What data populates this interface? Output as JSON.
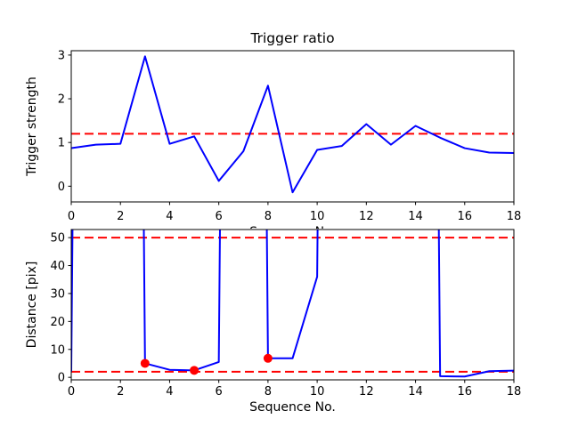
{
  "figure": {
    "background": "#ffffff",
    "text_color": "#000000"
  },
  "chart_data": [
    {
      "id": "trigger-ratio",
      "type": "line",
      "title": "Trigger ratio",
      "xlabel": "Sequence No.",
      "ylabel": "Trigger strength",
      "x": [
        0,
        1,
        2,
        3,
        4,
        5,
        6,
        7,
        8,
        9,
        10,
        11,
        12,
        13,
        14,
        15,
        16,
        17,
        18
      ],
      "y": [
        0.87,
        0.95,
        0.97,
        2.97,
        0.97,
        1.14,
        0.12,
        0.8,
        2.3,
        -0.14,
        0.83,
        0.92,
        1.42,
        0.95,
        1.38,
        1.11,
        0.87,
        0.77,
        0.76
      ],
      "thresholds": [
        1.2
      ],
      "markers": [],
      "xlim": [
        0,
        18
      ],
      "ylim": [
        -0.36,
        3.1
      ],
      "xticks": [
        0,
        2,
        4,
        6,
        8,
        10,
        12,
        14,
        16,
        18
      ],
      "yticks": [
        0,
        1,
        2,
        3
      ],
      "line_color": "#0000ff",
      "threshold_color": "#ff0000",
      "marker_color": "#ff0000",
      "grid": false,
      "legend": null
    },
    {
      "id": "distance",
      "type": "line",
      "title": "",
      "xlabel": "Sequence No.",
      "ylabel": "Distance [pix]",
      "x": [
        0,
        1,
        2,
        3,
        4,
        5,
        6,
        7,
        8,
        9,
        10,
        11,
        12,
        13,
        14,
        15,
        16,
        17,
        18
      ],
      "y": [
        2.0,
        999,
        999,
        5.0,
        2.7,
        2.5,
        5.5,
        999,
        6.8,
        6.8,
        36,
        999,
        999,
        999,
        999,
        0.4,
        0.3,
        2.2,
        2.4
      ],
      "thresholds": [
        50,
        2
      ],
      "markers": [
        [
          3,
          5.0
        ],
        [
          5,
          2.5
        ],
        [
          8,
          6.8
        ]
      ],
      "xlim": [
        0,
        18
      ],
      "ylim": [
        -0.9,
        52.9
      ],
      "xticks": [
        0,
        2,
        4,
        6,
        8,
        10,
        12,
        14,
        16,
        18
      ],
      "yticks": [
        0,
        10,
        20,
        30,
        40,
        50
      ],
      "line_color": "#0000ff",
      "threshold_color": "#ff0000",
      "marker_color": "#ff0000",
      "grid": false,
      "legend": null
    }
  ]
}
